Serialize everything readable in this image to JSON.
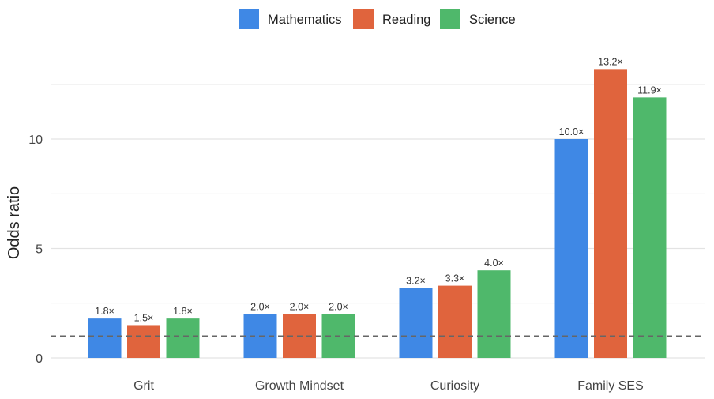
{
  "chart_data": {
    "type": "bar",
    "categories": [
      "Grit",
      "Growth Mindset",
      "Curiosity",
      "Family SES"
    ],
    "series": [
      {
        "name": "Mathematics",
        "color": "#3f88e5",
        "values": [
          1.8,
          2.0,
          3.2,
          10.0
        ],
        "labels": [
          "1.8×",
          "2.0×",
          "3.2×",
          "10.0×"
        ]
      },
      {
        "name": "Reading",
        "color": "#e0643d",
        "values": [
          1.5,
          2.0,
          3.3,
          13.2
        ],
        "labels": [
          "1.5×",
          "2.0×",
          "3.3×",
          "13.2×"
        ]
      },
      {
        "name": "Science",
        "color": "#4fb86b",
        "values": [
          1.8,
          2.0,
          4.0,
          11.9
        ],
        "labels": [
          "1.8×",
          "2.0×",
          "4.0×",
          "11.9×"
        ]
      }
    ],
    "xlabel": "",
    "ylabel": "Odds ratio",
    "ylim": [
      0,
      13.2
    ],
    "yticks": [
      0,
      5,
      10
    ],
    "yticklabels": [
      "0",
      "5",
      "10"
    ],
    "reference_line": 1,
    "grid": true,
    "legend_position": "top-center"
  }
}
